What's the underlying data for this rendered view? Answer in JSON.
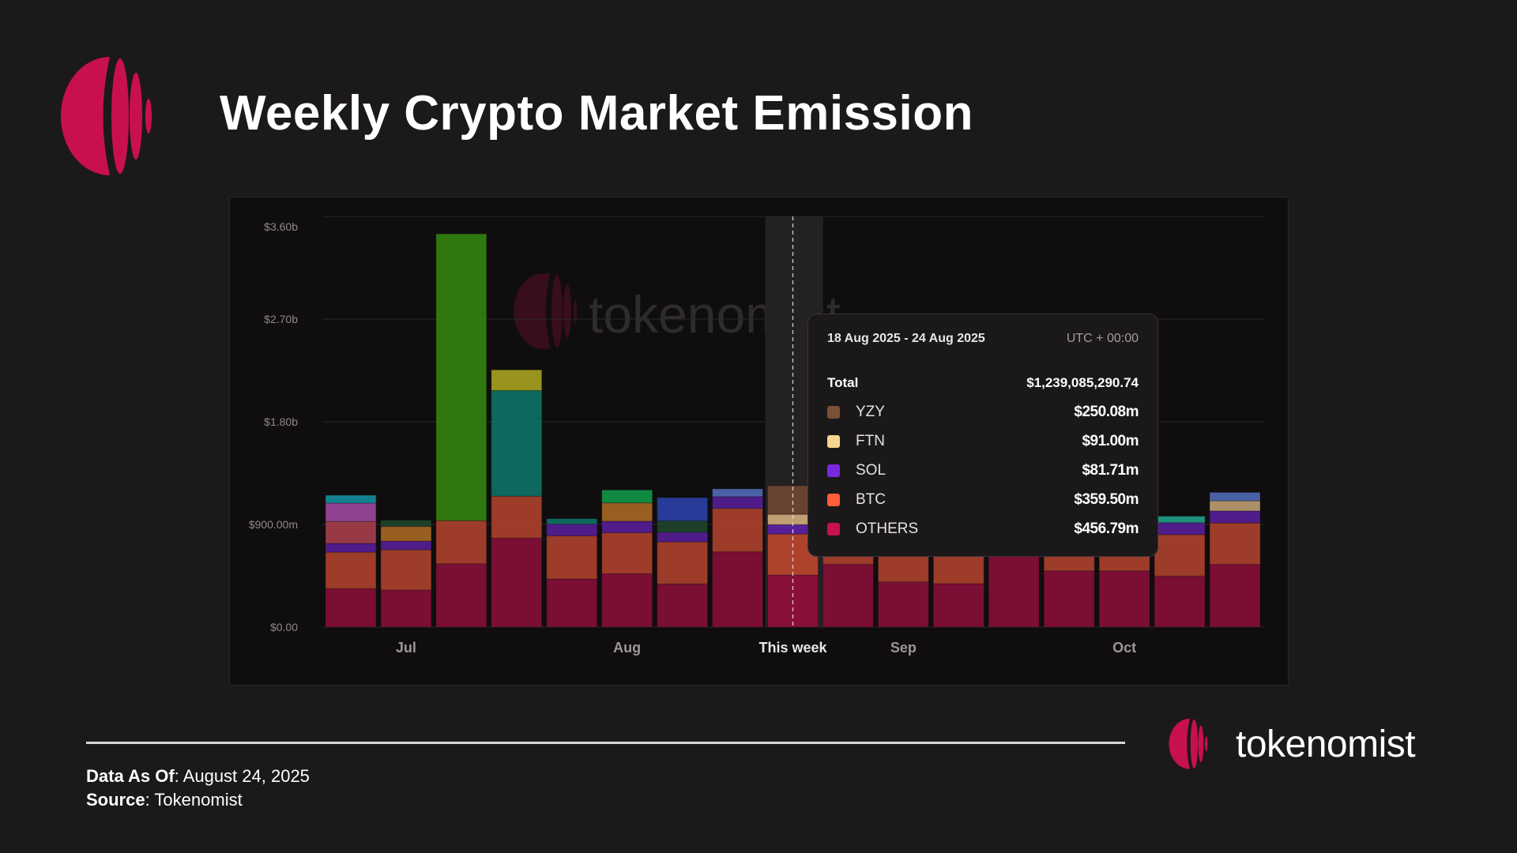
{
  "header": {
    "title": "Weekly Crypto Market Emission"
  },
  "brand": {
    "name": "tokenomist",
    "accent": "#c8104f"
  },
  "footer": {
    "data_as_of_label": "Data As Of",
    "data_as_of_value": "August 24, 2025",
    "source_label": "Source",
    "source_value": "Tokenomist"
  },
  "tooltip": {
    "date_range": "18 Aug 2025 - 24 Aug 2025",
    "timezone": "UTC + 00:00",
    "total_label": "Total",
    "total_value": "$1,239,085,290.74",
    "items": [
      {
        "name": "YZY",
        "value": "$250.08m",
        "color": "#7a5038"
      },
      {
        "name": "FTN",
        "value": "$91.00m",
        "color": "#f7d68f"
      },
      {
        "name": "SOL",
        "value": "$81.71m",
        "color": "#7a28e0"
      },
      {
        "name": "BTC",
        "value": "$359.50m",
        "color": "#ff5e3a"
      },
      {
        "name": "OTHERS",
        "value": "$456.79m",
        "color": "#c8104f"
      }
    ]
  },
  "chart_data": {
    "type": "bar",
    "stacked": true,
    "unit": "USD millions",
    "ylim": [
      0,
      3600
    ],
    "y_ticks": [
      {
        "value": 0,
        "label": "$0.00"
      },
      {
        "value": 900,
        "label": "$900.00m"
      },
      {
        "value": 1800,
        "label": "$1.80b"
      },
      {
        "value": 2700,
        "label": "$2.70b"
      },
      {
        "value": 3600,
        "label": "$3.60b"
      }
    ],
    "x_ticks": [
      {
        "index": 1,
        "label": "Jul"
      },
      {
        "index": 5,
        "label": "Aug"
      },
      {
        "index": 8,
        "label": "This week"
      },
      {
        "index": 10,
        "label": "Sep"
      },
      {
        "index": 14,
        "label": "Oct"
      }
    ],
    "highlighted_index": 8,
    "grid": true,
    "watermark": "tokenomist",
    "series": [
      {
        "name": "OTHERS",
        "color": "#8e0f3c",
        "values": [
          337,
          325,
          555,
          780,
          422,
          468,
          378,
          660,
          456.79,
          550,
          396,
          381,
          620,
          493,
          493,
          447,
          550
        ]
      },
      {
        "name": "BTC",
        "color": "#b5452e",
        "values": [
          320,
          353,
          378,
          368,
          378,
          360,
          369,
          381,
          359.5,
          360,
          350,
          360,
          300,
          370,
          365,
          364,
          363
        ]
      },
      {
        "name": "SOL",
        "color": "#5a1fa0",
        "values": [
          77,
          76,
          0,
          0,
          103,
          100,
          84,
          102,
          81.71,
          90,
          90,
          90,
          90,
          90,
          90,
          104,
          105
        ]
      },
      {
        "name": "FTN",
        "color": "#c9a777",
        "values": [
          0,
          0,
          0,
          0,
          0,
          0,
          0,
          0,
          91,
          0,
          0,
          0,
          0,
          0,
          0,
          0,
          89
        ]
      },
      {
        "name": "YZY",
        "color": "#6b4631",
        "values": [
          0,
          0,
          0,
          0,
          0,
          0,
          0,
          0,
          250.08,
          0,
          0,
          0,
          0,
          0,
          0,
          0,
          0
        ]
      },
      {
        "color": "#b0424f",
        "values": [
          192,
          0,
          0,
          0,
          0,
          0,
          0,
          0,
          0,
          0,
          0,
          0,
          0,
          0,
          0,
          0,
          0
        ]
      },
      {
        "color": "#a64ca6",
        "values": [
          161,
          0,
          0,
          0,
          0,
          0,
          0,
          0,
          0,
          0,
          0,
          0,
          0,
          0,
          0,
          0,
          0
        ]
      },
      {
        "color": "#1496a8",
        "values": [
          69,
          0,
          0,
          0,
          0,
          0,
          0,
          0,
          0,
          0,
          0,
          0,
          0,
          0,
          0,
          0,
          0
        ]
      },
      {
        "color": "#b06e24",
        "values": [
          0,
          128,
          0,
          0,
          0,
          161,
          0,
          0,
          0,
          0,
          0,
          0,
          0,
          0,
          0,
          0,
          0
        ]
      },
      {
        "color": "#1f4a2c",
        "values": [
          0,
          56,
          0,
          0,
          0,
          0,
          100,
          0,
          0,
          0,
          0,
          0,
          0,
          0,
          0,
          0,
          0
        ]
      },
      {
        "color": "#358a10",
        "values": [
          0,
          0,
          2514,
          0,
          0,
          0,
          0,
          0,
          0,
          0,
          0,
          0,
          0,
          0,
          0,
          0,
          0
        ]
      },
      {
        "color": "#0d7a6c",
        "values": [
          0,
          0,
          0,
          926,
          48,
          0,
          0,
          0,
          0,
          0,
          0,
          0,
          0,
          0,
          0,
          0,
          0
        ]
      },
      {
        "color": "#b0ac20",
        "values": [
          0,
          0,
          0,
          181,
          0,
          0,
          0,
          0,
          0,
          0,
          0,
          0,
          0,
          0,
          0,
          0,
          0
        ]
      },
      {
        "color": "#12a04a",
        "values": [
          0,
          0,
          0,
          0,
          0,
          113,
          0,
          0,
          0,
          0,
          0,
          0,
          0,
          0,
          0,
          0,
          0
        ]
      },
      {
        "color": "#2c45b0",
        "values": [
          0,
          0,
          0,
          0,
          0,
          0,
          204,
          0,
          0,
          0,
          0,
          0,
          0,
          0,
          0,
          0,
          0
        ]
      },
      {
        "color": "#5470c0",
        "values": [
          0,
          0,
          0,
          0,
          0,
          0,
          0,
          69,
          0,
          0,
          0,
          0,
          0,
          0,
          0,
          0,
          74
        ]
      },
      {
        "color": "#22a890",
        "values": [
          0,
          0,
          0,
          0,
          0,
          0,
          0,
          0,
          0,
          0,
          0,
          0,
          0,
          0,
          0,
          57,
          0
        ]
      }
    ]
  }
}
